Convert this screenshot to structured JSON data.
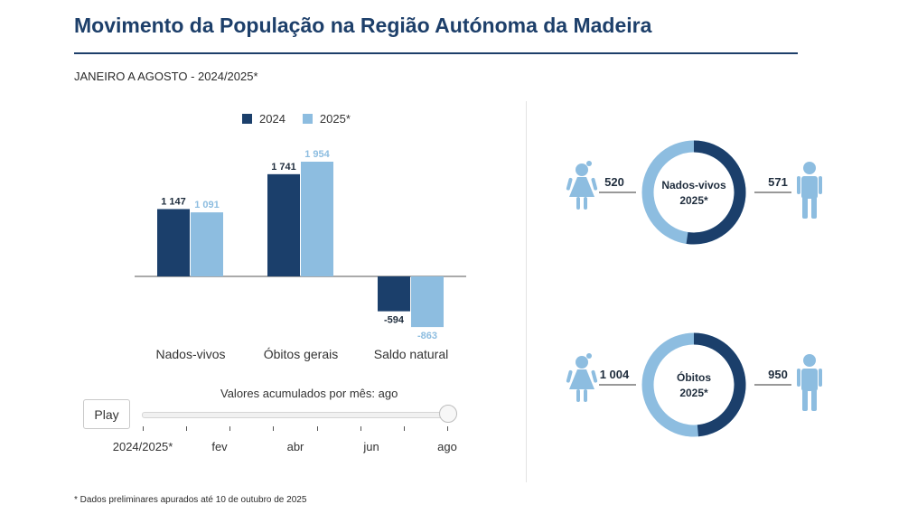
{
  "title": "Movimento da População na Região Autónoma da Madeira",
  "subtitle": "JANEIRO A AGOSTO - 2024/2025*",
  "footnote": "* Dados preliminares apurados até 10 de outubro de 2025",
  "colors": {
    "y2024": "#1b3f6b",
    "y2025": "#8dbde0",
    "title": "#1d3f6a"
  },
  "chart_data": [
    {
      "type": "bar",
      "title": "",
      "legend": "top",
      "categories": [
        "Nados-vivos",
        "Óbitos gerais",
        "Saldo natural"
      ],
      "series": [
        {
          "name": "2024",
          "values": [
            1147,
            1741,
            -594
          ],
          "labels": [
            "1 147",
            "1 741",
            "-594"
          ]
        },
        {
          "name": "2025*",
          "values": [
            1091,
            1954,
            -863
          ],
          "labels": [
            "1 091",
            "1 954",
            "-863"
          ]
        }
      ],
      "ylim": [
        -863,
        1954
      ],
      "grid": false
    },
    {
      "type": "pie",
      "title": "Nados-vivos 2025*",
      "center_lines": [
        "Nados-vivos",
        "2025*"
      ],
      "slices": [
        {
          "name": "Feminino",
          "value": 520,
          "label": "520"
        },
        {
          "name": "Masculino",
          "value": 571,
          "label": "571"
        }
      ]
    },
    {
      "type": "pie",
      "title": "Óbitos 2025*",
      "center_lines": [
        "Óbitos",
        "2025*"
      ],
      "slices": [
        {
          "name": "Feminino",
          "value": 1004,
          "label": "1 004"
        },
        {
          "name": "Masculino",
          "value": 950,
          "label": "950"
        }
      ]
    }
  ],
  "slider": {
    "title": "Valores acumulados por mês: ago",
    "play_label": "Play",
    "tick_labels": [
      "2024/2025*",
      "fev",
      "abr",
      "jun",
      "ago"
    ],
    "current_index": 7,
    "max_index": 7
  }
}
